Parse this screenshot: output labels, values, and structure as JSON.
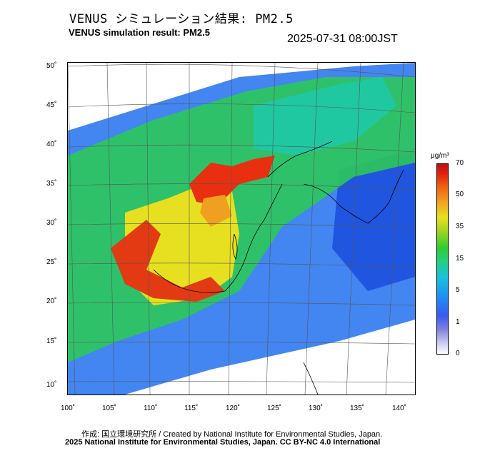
{
  "header": {
    "title_jp": "VENUS シミュレーション結果: PM2.5",
    "title_en": "VENUS simulation result: PM2.5",
    "timestamp": "2025-07-31 08:00JST"
  },
  "map": {
    "lon_labels": [
      "100˚",
      "105˚",
      "110˚",
      "115˚",
      "120˚",
      "125˚",
      "130˚",
      "135˚",
      "140˚"
    ],
    "lat_labels": [
      "50˚",
      "45˚",
      "40˚",
      "35˚",
      "30˚",
      "25˚",
      "20˚",
      "15˚",
      "10˚"
    ]
  },
  "colorbar": {
    "unit": "μg/m³",
    "labels": [
      "70",
      "50",
      "35",
      "15",
      "5",
      "1",
      "0"
    ]
  },
  "credits": {
    "line1": "作成: 国立環境研究所 / Created by National Institute for Environmental Studies, Japan.",
    "line2": "2025 National Institute for Environmental Studies, Japan. CC BY-NC 4.0 International"
  },
  "colors": {
    "low": "#3a5af0",
    "mid": "#30cc30",
    "high": "#e02010"
  }
}
